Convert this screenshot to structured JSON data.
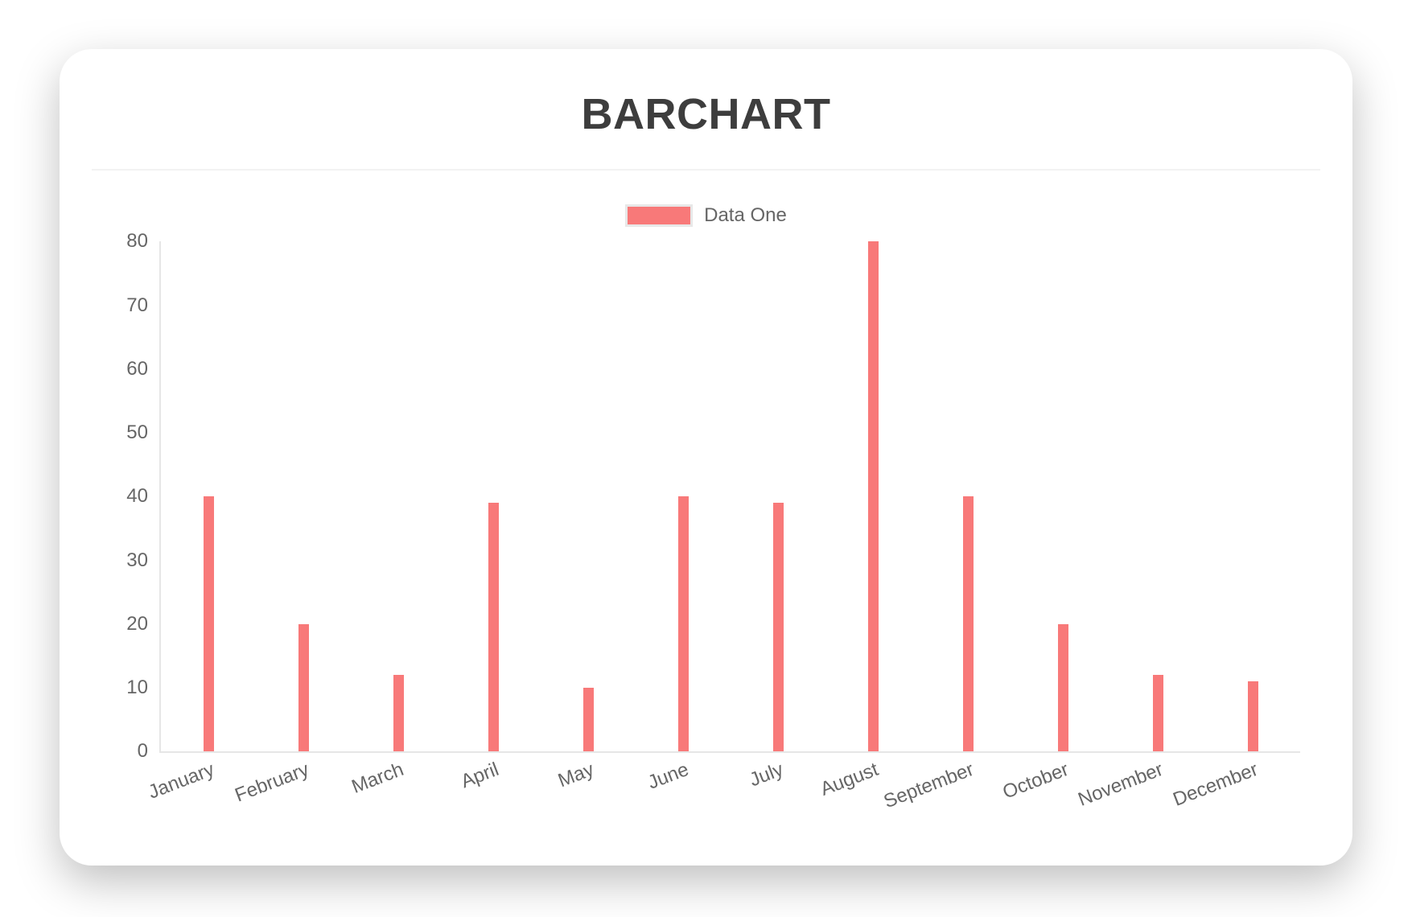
{
  "chart_data": {
    "type": "bar",
    "title": "BARCHART",
    "categories": [
      "January",
      "February",
      "March",
      "April",
      "May",
      "June",
      "July",
      "August",
      "September",
      "October",
      "November",
      "December"
    ],
    "series": [
      {
        "name": "Data One",
        "values": [
          40,
          20,
          12,
          39,
          10,
          40,
          39,
          80,
          40,
          20,
          12,
          11
        ]
      }
    ],
    "xlabel": "",
    "ylabel": "",
    "ylim": [
      0,
      80
    ],
    "yticks": [
      0,
      10,
      20,
      30,
      40,
      50,
      60,
      70,
      80
    ],
    "grid": false,
    "legend_position": "top-center",
    "x_label_rotation_deg": -21,
    "bar_color": "#f87979"
  },
  "legend": {
    "label": "Data One"
  },
  "colors": {
    "bar": "#f87979",
    "title_text": "#3d3d3d",
    "axis_text": "#666666",
    "axis_line": "#e6e6e6",
    "divider": "#f2f2f2",
    "legend_swatch_border": "#e8e8e8",
    "card_background": "#ffffff"
  }
}
